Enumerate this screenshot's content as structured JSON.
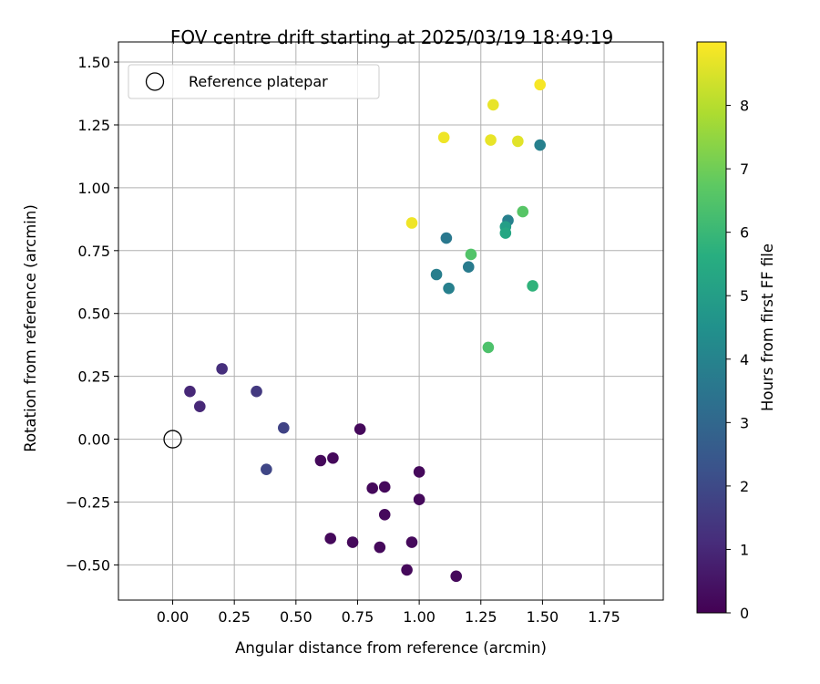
{
  "chart_data": {
    "type": "scatter",
    "title": "FOV centre drift starting at 2025/03/19 18:49:19",
    "xlabel": "Angular distance from reference (arcmin)",
    "ylabel": "Rotation from reference (arcmin)",
    "xlim": [
      -0.22,
      1.99
    ],
    "ylim": [
      -0.64,
      1.58
    ],
    "xticks": [
      "0.00",
      "0.25",
      "0.50",
      "0.75",
      "1.00",
      "1.25",
      "1.50",
      "1.75"
    ],
    "yticks": [
      "−0.50",
      "−0.25",
      "0.00",
      "0.25",
      "0.50",
      "0.75",
      "1.00",
      "1.25",
      "1.50"
    ],
    "grid": true,
    "legend": {
      "placement": "top-left",
      "entries": [
        "Reference platepar"
      ]
    },
    "reference_point": {
      "x": 0.0,
      "y": 0.0
    },
    "colorbar": {
      "label": "Hours from first FF file",
      "range": [
        0,
        9
      ],
      "ticks": [
        "0",
        "1",
        "2",
        "3",
        "4",
        "5",
        "6",
        "7",
        "8"
      ],
      "colormap": "viridis"
    },
    "points": [
      {
        "x": 0.07,
        "y": 0.19,
        "hours": 1.0
      },
      {
        "x": 0.2,
        "y": 0.28,
        "hours": 1.2
      },
      {
        "x": 0.11,
        "y": 0.13,
        "hours": 1.0
      },
      {
        "x": 0.34,
        "y": 0.19,
        "hours": 1.5
      },
      {
        "x": 0.45,
        "y": 0.045,
        "hours": 1.8
      },
      {
        "x": 0.38,
        "y": -0.12,
        "hours": 1.9
      },
      {
        "x": 0.6,
        "y": -0.085,
        "hours": 0.2
      },
      {
        "x": 0.65,
        "y": -0.075,
        "hours": 0.2
      },
      {
        "x": 0.76,
        "y": 0.04,
        "hours": 0.2
      },
      {
        "x": 0.81,
        "y": -0.195,
        "hours": 0.2
      },
      {
        "x": 0.86,
        "y": -0.19,
        "hours": 0.2
      },
      {
        "x": 1.0,
        "y": -0.13,
        "hours": 0.2
      },
      {
        "x": 1.0,
        "y": -0.24,
        "hours": 0.2
      },
      {
        "x": 0.86,
        "y": -0.3,
        "hours": 0.2
      },
      {
        "x": 0.64,
        "y": -0.395,
        "hours": 0.2
      },
      {
        "x": 0.73,
        "y": -0.41,
        "hours": 0.2
      },
      {
        "x": 0.84,
        "y": -0.43,
        "hours": 0.2
      },
      {
        "x": 0.97,
        "y": -0.41,
        "hours": 0.2
      },
      {
        "x": 0.95,
        "y": -0.52,
        "hours": 0.2
      },
      {
        "x": 1.15,
        "y": -0.545,
        "hours": 0.2
      },
      {
        "x": 1.07,
        "y": 0.655,
        "hours": 3.8
      },
      {
        "x": 1.12,
        "y": 0.6,
        "hours": 3.9
      },
      {
        "x": 1.11,
        "y": 0.8,
        "hours": 3.6
      },
      {
        "x": 1.2,
        "y": 0.685,
        "hours": 3.7
      },
      {
        "x": 1.49,
        "y": 1.17,
        "hours": 3.9
      },
      {
        "x": 1.36,
        "y": 0.87,
        "hours": 3.9
      },
      {
        "x": 1.35,
        "y": 0.845,
        "hours": 5.0
      },
      {
        "x": 1.35,
        "y": 0.82,
        "hours": 5.3
      },
      {
        "x": 1.46,
        "y": 0.61,
        "hours": 5.8
      },
      {
        "x": 1.21,
        "y": 0.735,
        "hours": 6.5
      },
      {
        "x": 1.42,
        "y": 0.905,
        "hours": 6.6
      },
      {
        "x": 1.28,
        "y": 0.365,
        "hours": 6.4
      },
      {
        "x": 0.97,
        "y": 0.86,
        "hours": 8.8
      },
      {
        "x": 1.1,
        "y": 1.2,
        "hours": 8.8
      },
      {
        "x": 1.29,
        "y": 1.19,
        "hours": 8.7
      },
      {
        "x": 1.4,
        "y": 1.185,
        "hours": 8.6
      },
      {
        "x": 1.3,
        "y": 1.33,
        "hours": 8.7
      },
      {
        "x": 1.49,
        "y": 1.41,
        "hours": 8.9
      }
    ]
  }
}
